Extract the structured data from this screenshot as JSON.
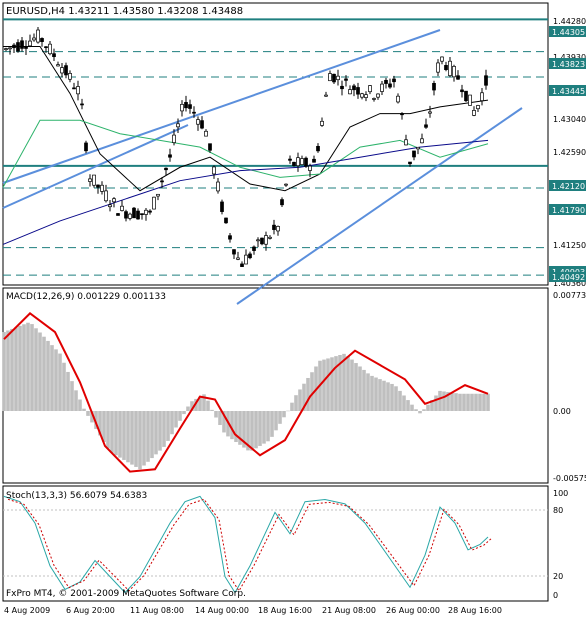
{
  "window": {
    "header": "EURUSD,H4  1.43211  1.43580  1.43208  1.43488",
    "copyright": "FxPro MT4, © 2001-2009 MetaQuotes Software Corp."
  },
  "colors": {
    "background": "#ffffff",
    "grid_line": "#1f7f7f",
    "candle": "#000000",
    "trendline": "#5b8fdc",
    "ma_fast": "#000000",
    "ma_mid": "#2db36b",
    "ma_slow": "#0a0a8a",
    "macd_hist": "#bfbfbf",
    "macd_signal": "#e00000",
    "stoch_main": "#2aa7a7",
    "stoch_signal": "#cc0000",
    "label_bg": "#1f7f7f",
    "label_text": "#ffffff"
  },
  "price_axis": {
    "plain_ticks": [
      "1.44280",
      "1.43930",
      "1.43040",
      "1.42590",
      "1.41250",
      "1.40360"
    ],
    "level_labels": [
      "1.44305",
      "1.43823",
      "1.43445",
      "1.42120",
      "1.41790",
      "1.40903",
      "1.40492"
    ]
  },
  "macd": {
    "label": "MACD(12,26,9) 0.001229 0.001133",
    "ticks": [
      "0.00773",
      "0.00",
      "-0.00575"
    ]
  },
  "stoch": {
    "label": "Stoch(13,3,3) 56.6079 54.6383",
    "ticks": [
      "100",
      "80",
      "20",
      "0"
    ]
  },
  "time_axis": [
    "4 Aug 2009",
    "6 Aug 20:00",
    "11 Aug 08:00",
    "14 Aug 00:00",
    "18 Aug 16:00",
    "21 Aug 08:00",
    "26 Aug 00:00",
    "28 Aug 16:00"
  ],
  "chart_data": [
    {
      "type": "candlestick",
      "title": "EURUSD,H4",
      "values": {
        "open": 1.43211,
        "high": 1.4358,
        "low": 1.43208,
        "close": 1.43488
      },
      "ylim": [
        1.4036,
        1.4428
      ],
      "horizontal_levels": [
        1.44305,
        1.43823,
        1.43445,
        1.4212,
        1.4179,
        1.40903,
        1.40492
      ],
      "x_tick_labels": [
        "4 Aug 2009",
        "6 Aug 20:00",
        "11 Aug 08:00",
        "14 Aug 00:00",
        "18 Aug 16:00",
        "21 Aug 08:00",
        "26 Aug 00:00",
        "28 Aug 16:00"
      ]
    },
    {
      "type": "line",
      "title": "MACD(12,26,9)",
      "values": {
        "macd": 0.001229,
        "signal": 0.001133
      },
      "ylim": [
        -0.00575,
        0.00773
      ]
    },
    {
      "type": "line",
      "title": "Stoch(13,3,3)",
      "values": {
        "main": 56.6079,
        "signal": 54.6383
      },
      "ylim": [
        0,
        100
      ],
      "levels": [
        80,
        20
      ]
    }
  ]
}
